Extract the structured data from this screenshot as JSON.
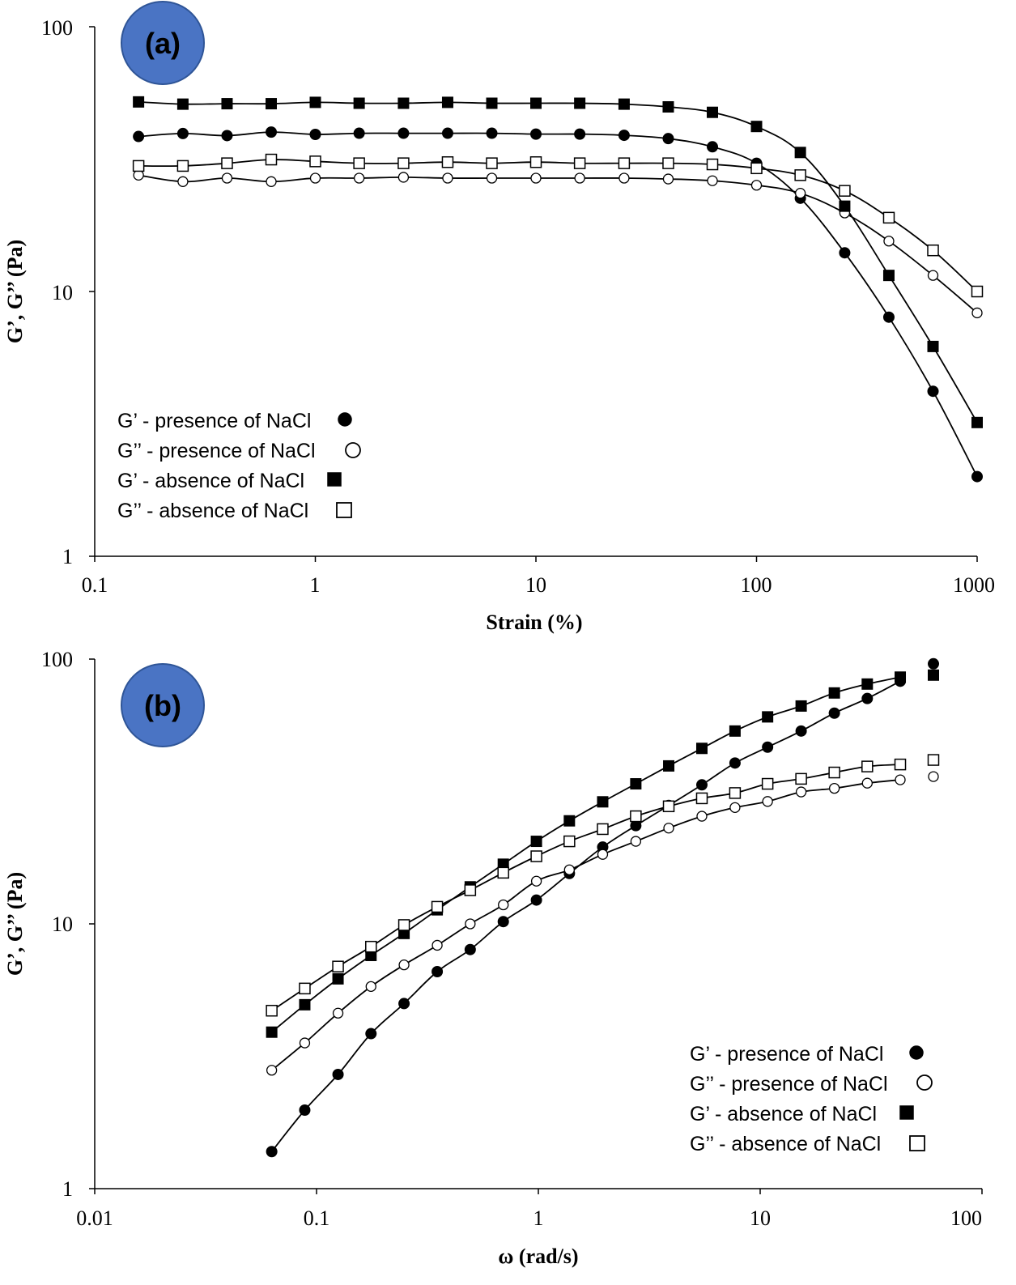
{
  "colors": {
    "badge_fill": "#4a74c4",
    "badge_edge": "#2f5597",
    "line": "#000000"
  },
  "chart_data": [
    {
      "type": "line",
      "panel_label": "(a)",
      "xscale": "log",
      "yscale": "log",
      "xlim": [
        0.1,
        1000
      ],
      "ylim": [
        1,
        100
      ],
      "xticks": [
        0.1,
        1,
        10,
        100,
        1000
      ],
      "xtick_labels": [
        "0.1",
        "1",
        "10",
        "100",
        "1000"
      ],
      "yticks": [
        1,
        10,
        100
      ],
      "ytick_labels": [
        "1",
        "10",
        "100"
      ],
      "xlabel": "Strain (%)",
      "ylabel": "G’, G’’ (Pa)",
      "grid": false,
      "legend_position": "bottom-left",
      "x": [
        0.158,
        0.251,
        0.398,
        0.631,
        1,
        1.58,
        2.51,
        3.98,
        6.31,
        10,
        15.8,
        25.1,
        39.8,
        63.1,
        100,
        158,
        251,
        398,
        631,
        1000
      ],
      "series": [
        {
          "name": "G’ - presence of NaCl",
          "marker": "filled-circle",
          "values": [
            38.5,
            39.5,
            38.8,
            40.0,
            39.2,
            39.6,
            39.6,
            39.6,
            39.6,
            39.3,
            39.3,
            38.9,
            37.8,
            35.2,
            30.5,
            22.5,
            14.0,
            8.0,
            4.2,
            2.0
          ]
        },
        {
          "name": "G’’ - presence of NaCl",
          "marker": "open-circle",
          "values": [
            27.5,
            26.0,
            26.8,
            26.0,
            26.8,
            26.8,
            27.0,
            26.8,
            26.8,
            26.8,
            26.8,
            26.8,
            26.6,
            26.2,
            25.2,
            23.5,
            19.8,
            15.5,
            11.5,
            8.3
          ]
        },
        {
          "name": "G’ - absence of NaCl",
          "marker": "filled-square",
          "values": [
            52.0,
            51.0,
            51.2,
            51.2,
            51.8,
            51.4,
            51.4,
            51.8,
            51.4,
            51.4,
            51.4,
            51.0,
            49.8,
            47.5,
            42.0,
            33.5,
            21.0,
            11.5,
            6.2,
            3.2
          ]
        },
        {
          "name": "G’’ - absence of NaCl",
          "marker": "open-square",
          "values": [
            29.8,
            29.8,
            30.5,
            31.5,
            31.0,
            30.5,
            30.5,
            30.8,
            30.5,
            30.8,
            30.5,
            30.5,
            30.5,
            30.2,
            29.2,
            27.5,
            24.0,
            19.0,
            14.3,
            10.0
          ]
        }
      ]
    },
    {
      "type": "line",
      "panel_label": "(b)",
      "xscale": "log",
      "yscale": "log",
      "xlim": [
        0.01,
        100
      ],
      "ylim": [
        1,
        100
      ],
      "xticks": [
        0.01,
        0.1,
        1,
        10,
        100
      ],
      "xtick_labels": [
        "0.01",
        "0.1",
        "1",
        "10",
        "100"
      ],
      "yticks": [
        1,
        10,
        100
      ],
      "ytick_labels": [
        "1",
        "10",
        "100"
      ],
      "xlabel": "ω (rad/s)",
      "ylabel": "G’, G’’ (Pa)",
      "grid": false,
      "legend_position": "bottom-right",
      "x": [
        0.0628,
        0.0885,
        0.125,
        0.176,
        0.248,
        0.35,
        0.493,
        0.695,
        0.98,
        1.38,
        1.95,
        2.75,
        3.87,
        5.46,
        7.7,
        10.8,
        15.3,
        21.6,
        30.4,
        42.8,
        60.4
      ],
      "series": [
        {
          "name": "G’ - presence of NaCl",
          "marker": "filled-circle",
          "values": [
            1.38,
            1.98,
            2.7,
            3.85,
            5.0,
            6.6,
            8.0,
            10.2,
            12.3,
            15.5,
            19.5,
            23.5,
            28.0,
            33.5,
            40.5,
            46.5,
            53.5,
            62.5,
            71.0,
            82.5,
            96.0
          ]
        },
        {
          "name": "G’’ - presence of NaCl",
          "marker": "open-circle",
          "values": [
            2.8,
            3.55,
            4.6,
            5.8,
            7.0,
            8.3,
            10.0,
            11.8,
            14.5,
            16.0,
            18.3,
            20.5,
            23.0,
            25.5,
            27.5,
            29.0,
            31.5,
            32.5,
            34.0,
            35.0,
            36.0
          ]
        },
        {
          "name": "G’ - absence of NaCl",
          "marker": "filled-square",
          "values": [
            3.9,
            4.95,
            6.2,
            7.6,
            9.2,
            11.3,
            13.8,
            16.8,
            20.5,
            24.5,
            28.9,
            33.8,
            39.5,
            46.0,
            53.5,
            60.5,
            66.5,
            74.5,
            80.5,
            85.5,
            87.0
          ]
        },
        {
          "name": "G’’ - absence of NaCl",
          "marker": "open-square",
          "values": [
            4.7,
            5.7,
            6.9,
            8.2,
            9.9,
            11.6,
            13.4,
            15.6,
            18.0,
            20.5,
            22.8,
            25.5,
            27.8,
            29.8,
            31.2,
            33.8,
            35.3,
            37.3,
            39.3,
            40.0,
            41.6
          ]
        }
      ]
    }
  ]
}
